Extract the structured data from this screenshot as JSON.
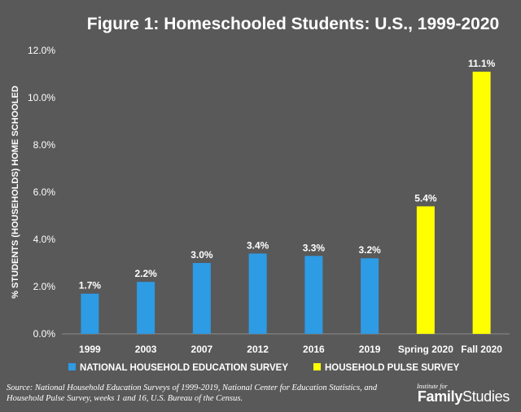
{
  "chart_data": {
    "type": "bar",
    "title": "Figure 1: Homeschooled Students: U.S., 1999-2020",
    "ylabel": "% STUDENTS (HOUSEHOLDS) HOME SCHOOLED",
    "xlabel": "",
    "ylim": [
      0,
      12
    ],
    "yticks": [
      "0.0%",
      "2.0%",
      "4.0%",
      "6.0%",
      "8.0%",
      "10.0%",
      "12.0%"
    ],
    "ytick_values": [
      0,
      2,
      4,
      6,
      8,
      10,
      12
    ],
    "grid": false,
    "legend_position": "bottom",
    "categories": [
      "1999",
      "2003",
      "2007",
      "2012",
      "2016",
      "2019",
      "Spring 2020",
      "Fall 2020"
    ],
    "series": [
      {
        "name": "NATIONAL HOUSEHOLD EDUCATION SURVEY",
        "color": "#2e9be5",
        "values": [
          1.7,
          2.2,
          3.0,
          3.4,
          3.3,
          3.2,
          null,
          null
        ],
        "labels": [
          "1.7%",
          "2.2%",
          "3.0%",
          "3.4%",
          "3.3%",
          "3.2%",
          "",
          ""
        ]
      },
      {
        "name": "HOUSEHOLD PULSE SURVEY",
        "color": "#ffff00",
        "values": [
          null,
          null,
          null,
          null,
          null,
          null,
          5.4,
          11.1
        ],
        "labels": [
          "",
          "",
          "",
          "",
          "",
          "",
          "5.4%",
          "11.1%"
        ]
      }
    ]
  },
  "source": "Source: National Household Education Surveys of 1999-2019, National Center for Education Statistics, and Household Pulse Survey, weeks 1 and 16, U.S. Bureau of the Census.",
  "logo": {
    "small": "Institute for",
    "bold": "Family",
    "regular": "Studies"
  }
}
